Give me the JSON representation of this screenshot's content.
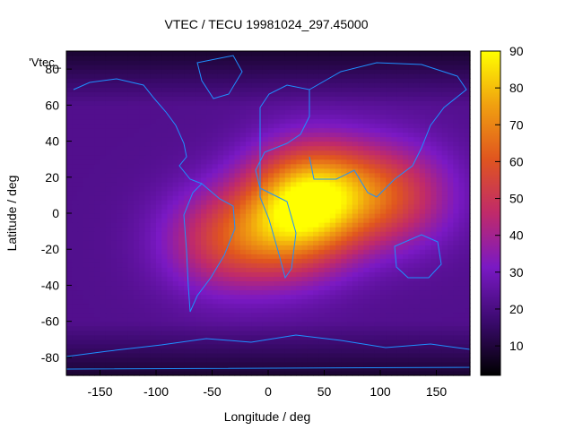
{
  "chart_data": {
    "type": "heatmap",
    "title": "VTEC / TECU 19981024_297.45000",
    "xlabel": "Longitude / deg",
    "ylabel": "Latitude / deg",
    "xlim": [
      -180,
      180
    ],
    "ylim": [
      -90,
      90
    ],
    "x_ticks": [
      -150,
      -100,
      -50,
      0,
      50,
      100,
      150
    ],
    "y_ticks": [
      -80,
      -60,
      -40,
      -20,
      0,
      20,
      40,
      60,
      80
    ],
    "legend_label": "'Vtec_",
    "colorbar": {
      "range": [
        2,
        90
      ],
      "ticks": [
        10,
        20,
        30,
        40,
        50,
        60,
        70,
        80,
        90
      ],
      "colormap": [
        "#000000",
        "#3b0a6e",
        "#7a19c4",
        "#c02a6a",
        "#e0551f",
        "#f0a010",
        "#ffff00"
      ]
    },
    "field_peaks": [
      {
        "lon": 40,
        "lat": 12,
        "value": 80
      },
      {
        "lon": 20,
        "lat": -10,
        "value": 58
      },
      {
        "lon": -40,
        "lat": -15,
        "value": 52
      },
      {
        "lon": 110,
        "lat": 10,
        "value": 55
      }
    ],
    "background_level": 22,
    "grid": false,
    "overlay": "coastlines"
  }
}
